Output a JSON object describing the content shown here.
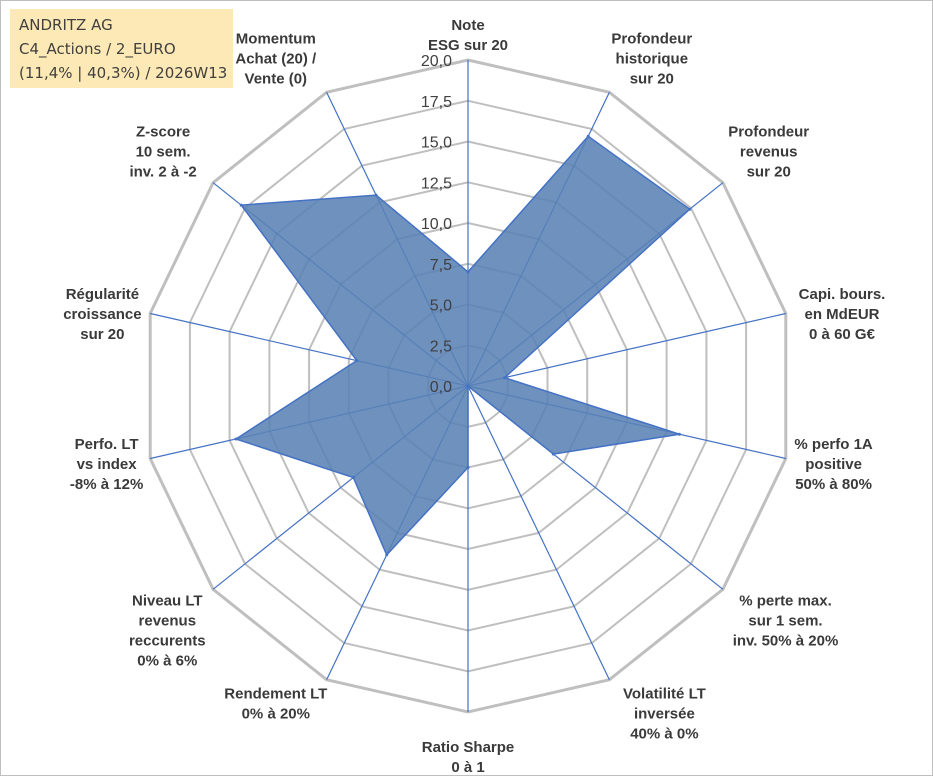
{
  "header": {
    "line1": "ANDRITZ AG",
    "line2": "C4_Actions / 2_EURO",
    "line3": "(11,4% | 40,3%) / 2026W13"
  },
  "chart_data": {
    "type": "radar",
    "title": "ANDRITZ AG",
    "range": [
      0,
      20
    ],
    "tick_labels": [
      "0,0",
      "2,5",
      "5,0",
      "7,5",
      "10,0",
      "12,5",
      "15,0",
      "17,5",
      "20,0"
    ],
    "axes": [
      {
        "lines": [
          "Note",
          "ESG sur 20"
        ],
        "value": 7.0
      },
      {
        "lines": [
          "Profondeur",
          "historique",
          "sur 20"
        ],
        "value": 17.0
      },
      {
        "lines": [
          "Profondeur",
          "revenus",
          "sur 20"
        ],
        "value": 17.4
      },
      {
        "lines": [
          "Capi. bours.",
          "en MdEUR",
          "0 à 60 G€"
        ],
        "value": 2.3
      },
      {
        "lines": [
          "% perfo 1A",
          "positive",
          "50% à 80%"
        ],
        "value": 13.3
      },
      {
        "lines": [
          "% perte max.",
          "sur 1 sem.",
          "inv. 50% à 20%"
        ],
        "value": 6.7
      },
      {
        "lines": [
          "Volatilité LT",
          "inversée",
          "40% à 0%"
        ],
        "value": 0.0
      },
      {
        "lines": [
          "Ratio Sharpe",
          "0 à 1"
        ],
        "value": 5.0
      },
      {
        "lines": [
          "Rendement LT",
          "0% à 20%"
        ],
        "value": 11.5
      },
      {
        "lines": [
          "Niveau LT",
          "revenus",
          "reccurents",
          "0% à 6%"
        ],
        "value": 9.0
      },
      {
        "lines": [
          "Perfo. LT",
          "vs index",
          "-8% à 12%"
        ],
        "value": 14.6
      },
      {
        "lines": [
          "Régularité",
          "croissance",
          "sur 20"
        ],
        "value": 7.0
      },
      {
        "lines": [
          "Z-score",
          "10 sem.",
          "inv. 2 à -2"
        ],
        "value": 17.8
      },
      {
        "lines": [
          "Momentum",
          "Achat (20) /",
          "Vente (0)"
        ],
        "value": 13.0
      }
    ],
    "series": [
      {
        "name": "ANDRITZ AG",
        "fill": "#5a82b5",
        "stroke": "#4472c4"
      }
    ],
    "grid_color": "#bfbfbf",
    "spoke_color": "#4472c4"
  }
}
